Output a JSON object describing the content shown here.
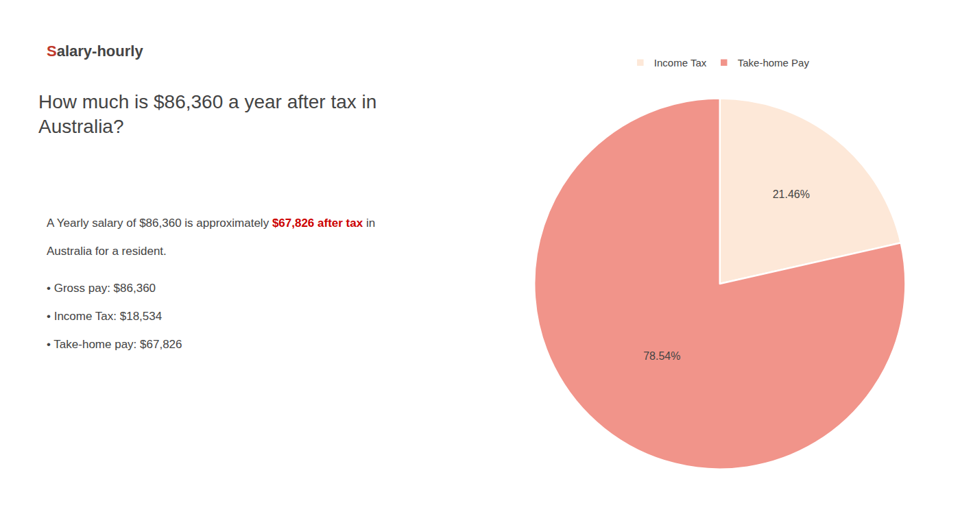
{
  "chart_data": {
    "type": "pie",
    "title": "How much is $86,360 a year after tax in\nAustralia?",
    "annotations": [
      [
        {
          "text": "S",
          "color": "#c0392b"
        },
        {
          "text": "alary-hourly"
        }
      ],
      [
        {
          "text": "A Yearly salary of $86,360 is approximately "
        },
        {
          "text": "$67,826 after tax",
          "color": "#cc0000"
        },
        {
          "text": " in"
        }
      ],
      [
        {
          "text": "Australia for a resident."
        }
      ],
      [
        {
          "text": "• Gross pay: $86,360"
        }
      ],
      [
        {
          "text": "• Income Tax: $18,534"
        }
      ],
      [
        {
          "text": "• Take-home pay: $67,826"
        }
      ]
    ],
    "categories": [
      "Income Tax",
      "Take-home Pay"
    ],
    "values": [
      21.46,
      78.54
    ],
    "value_labels": [
      "21.46%",
      "78.54%"
    ],
    "colors": [
      "#fde8d8",
      "#f1948a"
    ],
    "data_labels": true,
    "legend": "top"
  }
}
